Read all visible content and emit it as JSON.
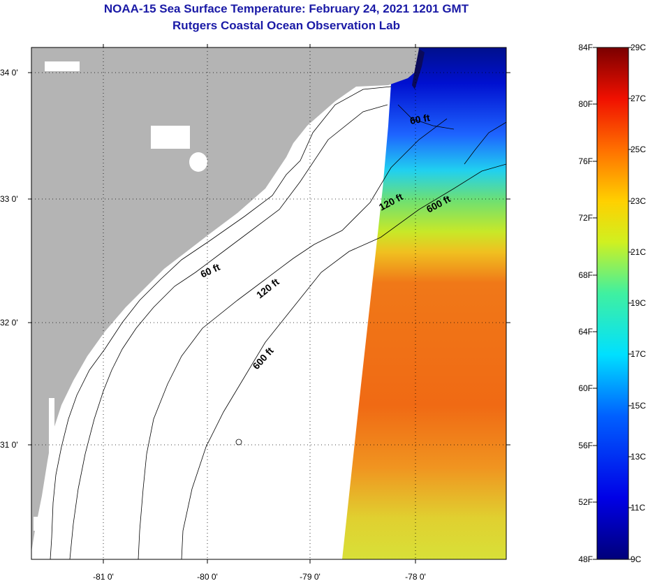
{
  "title": "NOAA-15 Sea Surface Temperature:  February 24, 2021 1201 GMT",
  "subtitle": "Rutgers Coastal Ocean Observation Lab",
  "map": {
    "lat_labels": [
      "34 0'",
      "33 0'",
      "32 0'",
      "31 0'"
    ],
    "lon_labels": [
      "-81 0'",
      "-80 0'",
      "-79 0'",
      "-78 0'"
    ],
    "contours": [
      "60 ft",
      "120 ft",
      "600 ft",
      "60 ft",
      "120 ft",
      "600 ft"
    ],
    "colors": {
      "land": "#b4b4b4",
      "cold": "#0010c8",
      "warm": "#f06414"
    }
  },
  "colorbar": {
    "fahrenheit": [
      "84F",
      "80F",
      "76F",
      "72F",
      "68F",
      "64F",
      "60F",
      "56F",
      "52F",
      "48F"
    ],
    "celsius": [
      "29C",
      "27C",
      "25C",
      "23C",
      "21C",
      "19C",
      "17C",
      "15C",
      "13C",
      "11C",
      "9C"
    ]
  }
}
